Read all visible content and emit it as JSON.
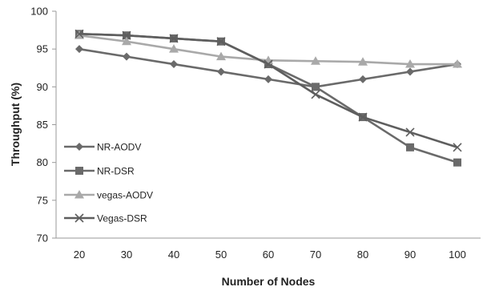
{
  "chart_data": {
    "type": "line",
    "xlabel": "Number of Nodes",
    "ylabel": "Throughput (%)",
    "x": [
      20,
      30,
      40,
      50,
      60,
      70,
      80,
      90,
      100
    ],
    "ylim": [
      70,
      100
    ],
    "yticks": [
      70,
      75,
      80,
      85,
      90,
      95,
      100
    ],
    "grid": false,
    "legend_position": "left",
    "series": [
      {
        "name": "NR-AODV",
        "marker": "diamond",
        "color": "#6a6a6a",
        "values": [
          95,
          94,
          93,
          92,
          91,
          90,
          91,
          92,
          93
        ]
      },
      {
        "name": "NR-DSR",
        "marker": "square",
        "color": "#6a6a6a",
        "values": [
          97,
          96.8,
          96.4,
          96,
          93,
          90,
          86,
          82,
          80
        ]
      },
      {
        "name": "vegas-AODV",
        "marker": "triangle",
        "color": "#a9a9a9",
        "values": [
          96.8,
          96,
          95,
          94,
          93.5,
          93.4,
          93.3,
          93,
          93
        ]
      },
      {
        "name": "Vegas-DSR",
        "marker": "x",
        "color": "#5e5e5e",
        "values": [
          97,
          96.8,
          96.4,
          96,
          93,
          89,
          86,
          84,
          82
        ]
      }
    ]
  }
}
